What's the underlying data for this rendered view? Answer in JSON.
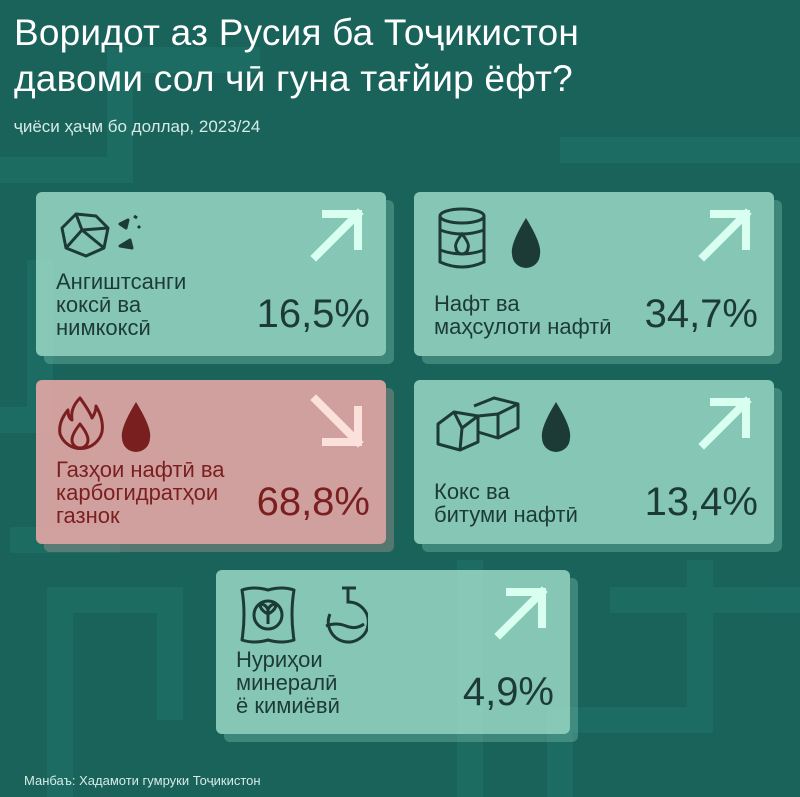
{
  "title_line1": "Воридот аз Русия ба Тоҷикистон",
  "title_line2": "давоми сол чӣ гуна тағйир ёфт?",
  "subtitle": "ҷиёси ҳаҷм бо доллар, 2023/24",
  "colors": {
    "background": "#19635a",
    "card_positive": "#a5e2ce",
    "card_negative": "#efaaaa",
    "arrow_up": "#d8fff0",
    "arrow_down": "#fbe0dc",
    "text_positive": "#1d3b36",
    "text_negative": "#7a1f1f"
  },
  "cards": [
    {
      "label_line1": "Ангиштсанги",
      "label_line2": "коксӣ ва",
      "label_line3": "нимкоксӣ",
      "value": "16,5%",
      "trend": "up",
      "icons": [
        "coal-lumps-icon"
      ]
    },
    {
      "label_line1": "Нафт ва",
      "label_line2": "маҳсулоти нафтӣ",
      "value": "34,7%",
      "trend": "up",
      "icons": [
        "oil-barrel-icon",
        "oil-drop-icon"
      ]
    },
    {
      "label_line1": "Газҳои нафтӣ ва",
      "label_line2": "карбогидратҳои",
      "label_line3": "газнок",
      "value": "68,8%",
      "trend": "down",
      "icons": [
        "flame-icon",
        "drop-icon"
      ]
    },
    {
      "label_line1": "Кокс ва",
      "label_line2": "битуми нафтӣ",
      "value": "13,4%",
      "trend": "up",
      "icons": [
        "coke-blocks-icon",
        "drop-icon"
      ]
    },
    {
      "label_line1": "Нуриҳои",
      "label_line2": "минералӣ",
      "label_line3": "ё кимиёвӣ",
      "value": "4,9%",
      "trend": "up",
      "icons": [
        "fertilizer-sack-icon",
        "flask-icon"
      ]
    }
  ],
  "source": "Манбаъ: Хадамоти гумруки Тоҷикистон"
}
